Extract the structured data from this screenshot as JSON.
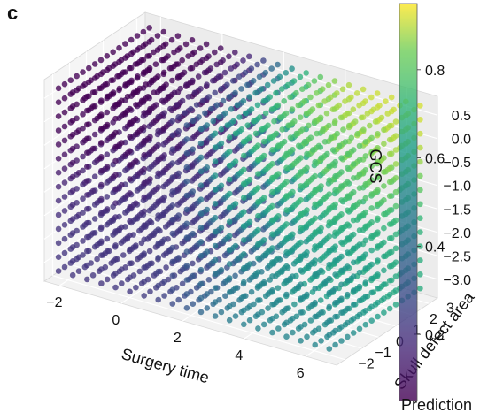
{
  "panel_label": "c",
  "chart_data": {
    "type": "scatter",
    "projection": "3d",
    "xlabel": "Surgery time",
    "ylabel": "Skull defect area",
    "zlabel": "GCS",
    "colorbar_label": "Prediction",
    "colormap": "viridis",
    "x_ticks": [
      "−2",
      "0",
      "2",
      "4",
      "6"
    ],
    "y_ticks": [
      "−2",
      "−1",
      "0",
      "1",
      "2",
      "3"
    ],
    "z_ticks": [
      "0.5",
      "0.0",
      "−0.5",
      "−1.0",
      "−1.5",
      "−2.0",
      "−2.5",
      "−3.0"
    ],
    "colorbar_ticks": [
      "0.8",
      "0.6",
      "0.4",
      "0.2"
    ],
    "xlim": [
      -2.5,
      7
    ],
    "ylim": [
      -2.5,
      3.5
    ],
    "zlim": [
      -3.4,
      0.9
    ],
    "clim": [
      0.05,
      0.95
    ],
    "grid": true,
    "point_grid": {
      "x": {
        "min": -2.2,
        "max": 6.6,
        "count": 20
      },
      "y": {
        "min": -2.2,
        "max": 3.2,
        "count": 16
      },
      "z": {
        "min": -3.2,
        "max": 0.7,
        "count": 14
      }
    }
  }
}
